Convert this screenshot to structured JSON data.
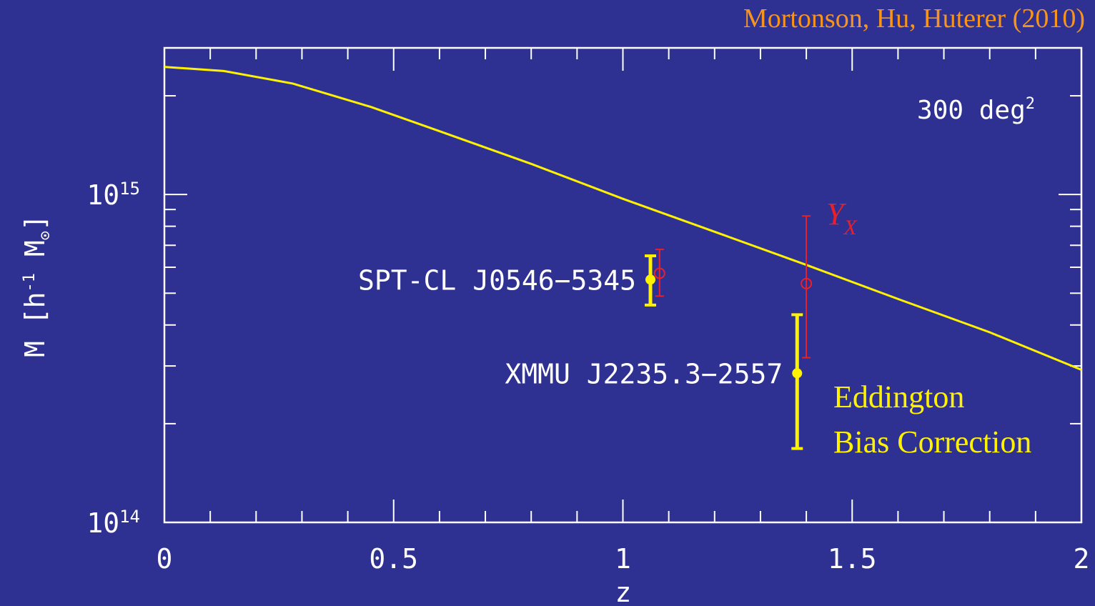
{
  "credit": "Mortonson, Hu, Huterer (2010)",
  "colors": {
    "background": "#2e3192",
    "axes": "#ffffff",
    "curve": "#fff200",
    "yx": "#e8202a",
    "credit": "#f7941d",
    "eddington": "#fff200"
  },
  "chart_data": {
    "type": "line",
    "xlabel": "z",
    "ylabel_main": "M [h",
    "ylabel_sup": "-1",
    "ylabel_end": " M",
    "ylabel_sub": "⊙",
    "ylabel_close": "]",
    "xlim": [
      0,
      2
    ],
    "ylim": [
      100000000000000,
      2800000000000000
    ],
    "yscale": "log",
    "grid": false,
    "x_ticks": [
      {
        "value": 0,
        "label": "0"
      },
      {
        "value": 0.5,
        "label": "0.5"
      },
      {
        "value": 1,
        "label": "1"
      },
      {
        "value": 1.5,
        "label": "1.5"
      },
      {
        "value": 2,
        "label": "2"
      }
    ],
    "y_ticks": [
      {
        "value": 100000000000000,
        "base": "10",
        "exp": "14"
      },
      {
        "value": 1000000000000000,
        "base": "10",
        "exp": "15"
      }
    ],
    "area_label": {
      "main": "300 deg",
      "sup": "2"
    },
    "series": [
      {
        "x": [
          0,
          0.13,
          0.28,
          0.45,
          0.6,
          0.8,
          1.0,
          1.2,
          1.4,
          1.6,
          1.8,
          2.0
        ],
        "y": [
          2450000000000000,
          2380000000000000,
          2180000000000000,
          1850000000000000,
          1560000000000000,
          1240000000000000,
          970000000000000,
          770000000000000,
          610000000000000,
          480000000000000,
          380000000000000,
          292000000000000
        ]
      }
    ],
    "clusters": [
      {
        "label": "SPT-CL J0546−5345",
        "z": 1.06,
        "mass": 550000000000000,
        "mass_low": 460000000000000,
        "mass_high": 650000000000000,
        "yx_z": 1.08,
        "yx_mass": 575000000000000,
        "yx_low": 490000000000000,
        "yx_high": 680000000000000
      },
      {
        "label": "XMMU J2235.3−2557",
        "z": 1.38,
        "mass": 285000000000000,
        "mass_low": 168000000000000,
        "mass_high": 430000000000000,
        "yx_z": 1.4,
        "yx_mass": 535000000000000,
        "yx_low": 318000000000000,
        "yx_high": 860000000000000
      }
    ],
    "yx_label": {
      "main": "Y",
      "sub": "X"
    },
    "eddington_label": [
      "Eddington",
      "Bias Correction"
    ]
  }
}
